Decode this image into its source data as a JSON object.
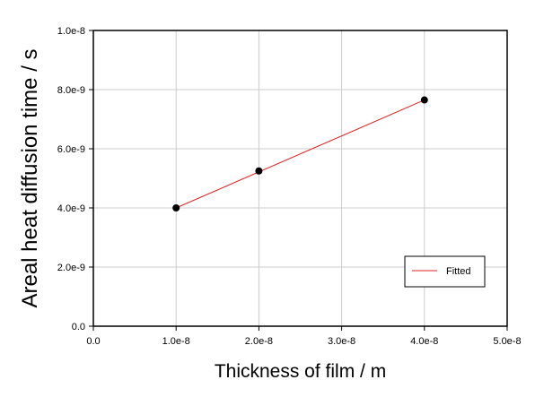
{
  "chart_data": {
    "type": "scatter",
    "title": "",
    "xlabel": "Thickness of film / m",
    "ylabel": "Areal heat diffusion time / s",
    "xlim": [
      0.0,
      5e-08
    ],
    "ylim": [
      0.0,
      1e-08
    ],
    "x_ticks": [
      0.0,
      1e-08,
      2e-08,
      3e-08,
      4e-08,
      5e-08
    ],
    "x_tick_labels": [
      "0.0",
      "1.0e-8",
      "2.0e-8",
      "3.0e-8",
      "4.0e-8",
      "5.0e-8"
    ],
    "y_ticks": [
      0.0,
      2e-09,
      4e-09,
      6e-09,
      8e-09,
      1e-08
    ],
    "y_tick_labels": [
      "0.0",
      "2.0e-9",
      "4.0e-9",
      "6.0e-9",
      "8.0e-9",
      "1.0e-8"
    ],
    "grid": true,
    "legend_position": "bottom-right",
    "points": {
      "x": [
        1e-08,
        2e-08,
        4e-08
      ],
      "y": [
        4e-09,
        5.25e-09,
        7.65e-09
      ],
      "color": "#000000"
    },
    "fit_line": {
      "name": "Fitted",
      "x": [
        1e-08,
        4e-08
      ],
      "y": [
        4e-09,
        7.65e-09
      ],
      "color": "#e02020"
    }
  }
}
